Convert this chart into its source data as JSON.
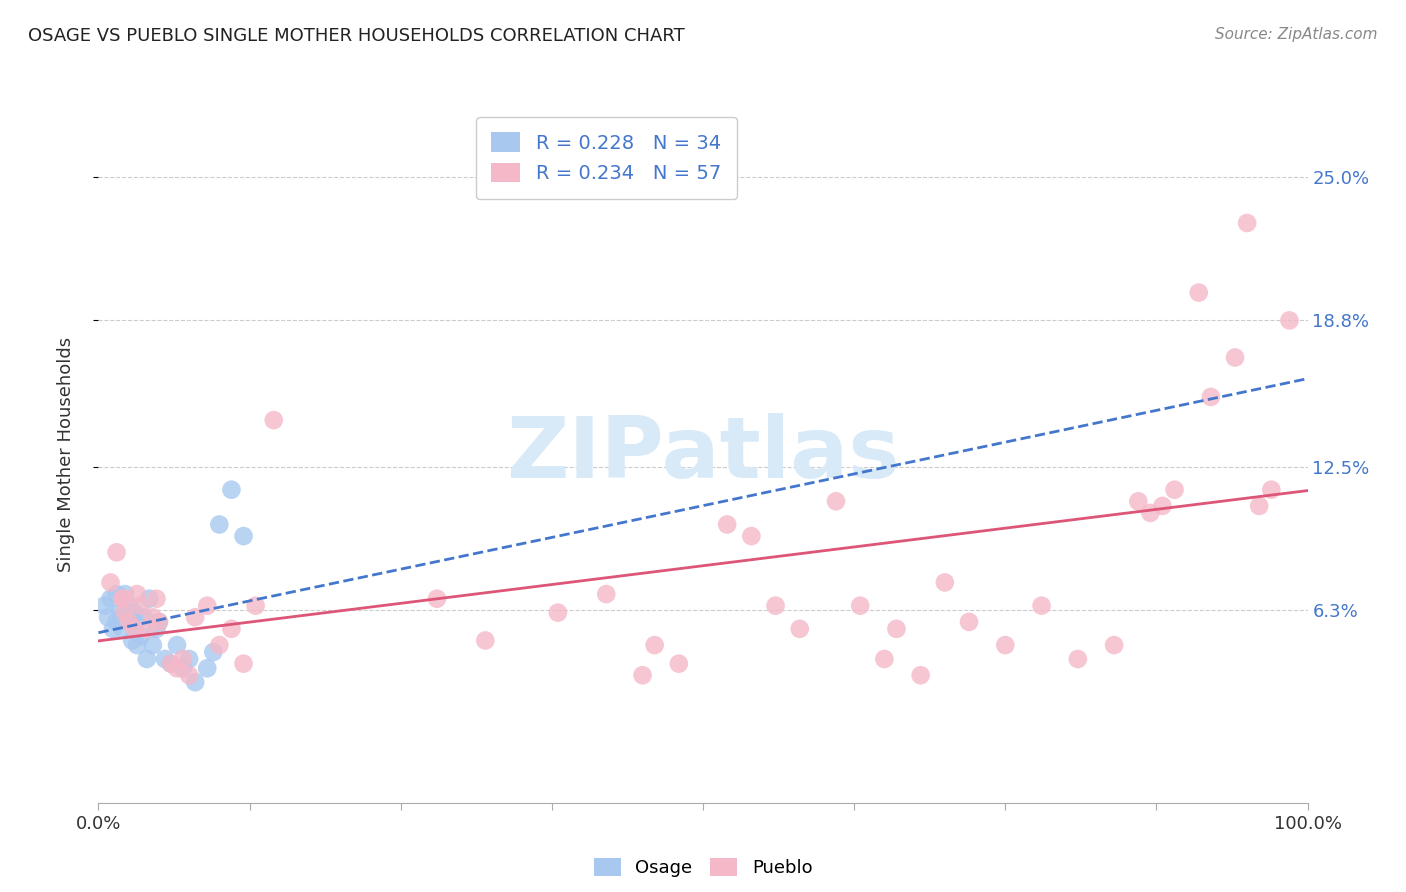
{
  "title": "OSAGE VS PUEBLO SINGLE MOTHER HOUSEHOLDS CORRELATION CHART",
  "source": "Source: ZipAtlas.com",
  "ylabel": "Single Mother Households",
  "ytick_labels": [
    "6.3%",
    "12.5%",
    "18.8%",
    "25.0%"
  ],
  "ytick_values": [
    0.063,
    0.125,
    0.188,
    0.25
  ],
  "xlim": [
    0.0,
    1.0
  ],
  "ylim": [
    -0.02,
    0.28
  ],
  "osage_R": 0.228,
  "osage_N": 34,
  "pueblo_R": 0.234,
  "pueblo_N": 57,
  "osage_color": "#A8C8F0",
  "pueblo_color": "#F5B8C8",
  "osage_line_color": "#4477CC",
  "pueblo_line_color": "#DD5577",
  "watermark_color": "#D8EAF8",
  "background_color": "#FFFFFF",
  "grid_color": "#CCCCCC",
  "osage_x": [
    0.005,
    0.008,
    0.01,
    0.012,
    0.015,
    0.015,
    0.018,
    0.02,
    0.02,
    0.022,
    0.025,
    0.025,
    0.028,
    0.03,
    0.03,
    0.032,
    0.035,
    0.038,
    0.04,
    0.042,
    0.045,
    0.048,
    0.05,
    0.055,
    0.06,
    0.065,
    0.07,
    0.075,
    0.08,
    0.09,
    0.095,
    0.1,
    0.11,
    0.12
  ],
  "osage_y": [
    0.065,
    0.06,
    0.068,
    0.055,
    0.058,
    0.07,
    0.062,
    0.055,
    0.06,
    0.07,
    0.058,
    0.065,
    0.05,
    0.062,
    0.058,
    0.048,
    0.052,
    0.06,
    0.042,
    0.068,
    0.048,
    0.055,
    0.058,
    0.042,
    0.04,
    0.048,
    0.038,
    0.042,
    0.032,
    0.038,
    0.045,
    0.1,
    0.115,
    0.095
  ],
  "pueblo_x": [
    0.01,
    0.015,
    0.02,
    0.022,
    0.025,
    0.03,
    0.032,
    0.035,
    0.04,
    0.045,
    0.048,
    0.05,
    0.06,
    0.065,
    0.07,
    0.075,
    0.08,
    0.09,
    0.1,
    0.11,
    0.12,
    0.13,
    0.145,
    0.02,
    0.28,
    0.32,
    0.38,
    0.42,
    0.45,
    0.46,
    0.48,
    0.52,
    0.54,
    0.56,
    0.58,
    0.61,
    0.63,
    0.65,
    0.66,
    0.68,
    0.7,
    0.72,
    0.75,
    0.78,
    0.81,
    0.84,
    0.86,
    0.87,
    0.88,
    0.89,
    0.91,
    0.92,
    0.94,
    0.95,
    0.96,
    0.97,
    0.985
  ],
  "pueblo_y": [
    0.075,
    0.088,
    0.068,
    0.062,
    0.058,
    0.055,
    0.07,
    0.065,
    0.055,
    0.06,
    0.068,
    0.058,
    0.04,
    0.038,
    0.042,
    0.035,
    0.06,
    0.065,
    0.048,
    0.055,
    0.04,
    0.065,
    0.145,
    0.068,
    0.068,
    0.05,
    0.062,
    0.07,
    0.035,
    0.048,
    0.04,
    0.1,
    0.095,
    0.065,
    0.055,
    0.11,
    0.065,
    0.042,
    0.055,
    0.035,
    0.075,
    0.058,
    0.048,
    0.065,
    0.042,
    0.048,
    0.11,
    0.105,
    0.108,
    0.115,
    0.2,
    0.155,
    0.172,
    0.23,
    0.108,
    0.115,
    0.188
  ]
}
